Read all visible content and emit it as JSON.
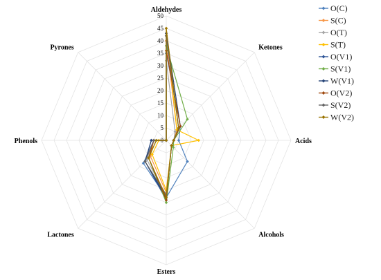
{
  "chart_data": {
    "type": "radar",
    "axes": [
      "Aldehydes",
      "Ketones",
      "Acids",
      "Alcohols",
      "Esters",
      "Lactones",
      "Phenols",
      "Pyrones"
    ],
    "rlim": [
      0,
      50
    ],
    "ticks": [
      0,
      5,
      10,
      15,
      20,
      25,
      30,
      35,
      40,
      45,
      50
    ],
    "grid": true,
    "legend_position": "right",
    "series": [
      {
        "name": "O(C)",
        "color": "#4f81bd",
        "values": [
          35,
          8,
          5,
          12,
          23,
          13,
          5,
          0
        ]
      },
      {
        "name": "S(C)",
        "color": "#f79646",
        "values": [
          40,
          6,
          3,
          3,
          21,
          9,
          5,
          0
        ]
      },
      {
        "name": "O(T)",
        "color": "#a5a5a5",
        "values": [
          32,
          5,
          3,
          3,
          22,
          11,
          5,
          0
        ]
      },
      {
        "name": "S(T)",
        "color": "#ffc000",
        "values": [
          45,
          6,
          13,
          3,
          20,
          8,
          3,
          0
        ]
      },
      {
        "name": "O(V1)",
        "color": "#2e5597",
        "values": [
          42,
          7,
          3,
          3,
          24,
          12,
          6,
          0
        ]
      },
      {
        "name": "S(V1)",
        "color": "#70ad47",
        "values": [
          38,
          12,
          3,
          4,
          25,
          10,
          4,
          0
        ]
      },
      {
        "name": "W(V1)",
        "color": "#264478",
        "values": [
          43,
          8,
          3,
          3,
          23,
          12,
          6,
          0
        ]
      },
      {
        "name": "O(V2)",
        "color": "#9e480e",
        "values": [
          36,
          8,
          3,
          3,
          24,
          10,
          5,
          0
        ]
      },
      {
        "name": "S(V2)",
        "color": "#636363",
        "values": [
          42,
          7,
          3,
          3,
          22,
          12,
          5,
          0
        ]
      },
      {
        "name": "W(V2)",
        "color": "#997300",
        "values": [
          45,
          7,
          3,
          3,
          23,
          10,
          4,
          0
        ]
      }
    ]
  }
}
